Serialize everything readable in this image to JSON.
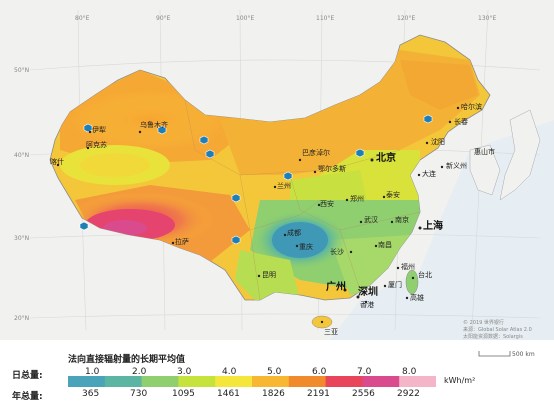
{
  "legend": {
    "title": "法向直接辐射量的长期平均值",
    "daily_label": "日总量:",
    "annual_label": "年总量:",
    "daily_values": [
      "1.0",
      "2.0",
      "3.0",
      "4.0",
      "5.0",
      "6.0",
      "7.0",
      "8.0"
    ],
    "annual_values": [
      "365",
      "730",
      "1095",
      "1461",
      "1826",
      "2191",
      "2556",
      "2922"
    ],
    "unit": "kWh/m²",
    "colors": [
      "#4aa3b8",
      "#5bb5a2",
      "#8fcf6f",
      "#c6e23c",
      "#f4e63a",
      "#f7b733",
      "#f08a2c",
      "#e8455a",
      "#d94b8c",
      "#f5b5c8"
    ]
  },
  "credits": {
    "line1": "© 2019 世界银行",
    "line2": "来源：Global Solar Atlas 2.0",
    "line3": "太阳能资源数据：Solargis",
    "scale": "500 km"
  },
  "axes": {
    "lon_labels": [
      "80°E",
      "90°E",
      "100°E",
      "110°E",
      "120°E",
      "130°E"
    ],
    "lat_labels": [
      "50°N",
      "40°N",
      "30°N",
      "20°N"
    ]
  },
  "cities": [
    {
      "name": "伊犁"
    },
    {
      "name": "乌鲁木齐"
    },
    {
      "name": "阿克苏"
    },
    {
      "name": "喀什"
    },
    {
      "name": "拉萨"
    },
    {
      "name": "兰州"
    },
    {
      "name": "巴彦淖尔"
    },
    {
      "name": "鄂尔多斯"
    },
    {
      "name": "北京"
    },
    {
      "name": "哈尔滨"
    },
    {
      "name": "长春"
    },
    {
      "name": "沈阳"
    },
    {
      "name": "大连"
    },
    {
      "name": "新义州"
    },
    {
      "name": "惠山市"
    },
    {
      "name": "泰安"
    },
    {
      "name": "郑州"
    },
    {
      "name": "西安"
    },
    {
      "name": "成都"
    },
    {
      "name": "重庆"
    },
    {
      "name": "武汉"
    },
    {
      "name": "南京"
    },
    {
      "name": "上海"
    },
    {
      "name": "长沙"
    },
    {
      "name": "南昌"
    },
    {
      "name": "福州"
    },
    {
      "name": "台北"
    },
    {
      "name": "厦门"
    },
    {
      "name": "高雄"
    },
    {
      "name": "昆明"
    },
    {
      "name": "广州"
    },
    {
      "name": "深圳"
    },
    {
      "name": "香港"
    },
    {
      "name": "三亚"
    }
  ]
}
